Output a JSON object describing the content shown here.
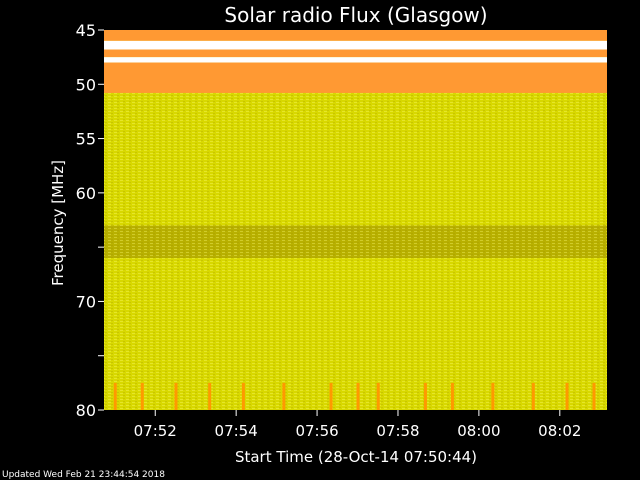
{
  "chart_data": {
    "type": "heatmap",
    "title": "Solar radio Flux (Glasgow)",
    "ylabel": "Frequency [MHz]",
    "xlabel": "Start Time (28-Oct-14 07:50:44)",
    "ylim": [
      45,
      80
    ],
    "y_inverted": true,
    "y_ticks": [
      45,
      50,
      55,
      60,
      65,
      70,
      75,
      80
    ],
    "y_tick_labels": [
      "45",
      "50",
      "55",
      "60",
      "",
      "70",
      "",
      "80"
    ],
    "x_start": "07:50:44",
    "x_end": "08:03:10",
    "x_ticks": [
      "07:52",
      "07:54",
      "07:56",
      "07:58",
      "08:00",
      "08:02"
    ],
    "colors": {
      "background": "#d8d800",
      "high_flux": "#ff9933",
      "saturated": "#ffffff",
      "low_band": "#b8b000",
      "bright": "#ffff66",
      "burst": "#ff9900"
    },
    "bands": [
      {
        "from": 45,
        "to": 46.0,
        "level": "high_flux"
      },
      {
        "from": 46.0,
        "to": 46.8,
        "level": "saturated"
      },
      {
        "from": 46.8,
        "to": 47.5,
        "level": "high_flux"
      },
      {
        "from": 47.5,
        "to": 48.0,
        "level": "saturated"
      },
      {
        "from": 48.0,
        "to": 50.8,
        "level": "high_flux"
      },
      {
        "from": 50.8,
        "to": 63.0,
        "level": "background"
      },
      {
        "from": 63.0,
        "to": 66.0,
        "level": "low_band"
      },
      {
        "from": 66.0,
        "to": 80,
        "level": "background"
      }
    ],
    "bursts": [
      {
        "time": "07:51:00",
        "from": 77.5,
        "to": 80
      },
      {
        "time": "07:51:40",
        "from": 77.5,
        "to": 80
      },
      {
        "time": "07:52:30",
        "from": 77.5,
        "to": 80
      },
      {
        "time": "07:53:20",
        "from": 77.5,
        "to": 80
      },
      {
        "time": "07:54:10",
        "from": 77.5,
        "to": 80
      },
      {
        "time": "07:55:10",
        "from": 77.5,
        "to": 80
      },
      {
        "time": "07:56:20",
        "from": 77.5,
        "to": 80
      },
      {
        "time": "07:57:00",
        "from": 77.5,
        "to": 80
      },
      {
        "time": "07:57:30",
        "from": 77.5,
        "to": 80
      },
      {
        "time": "07:58:40",
        "from": 77.5,
        "to": 80
      },
      {
        "time": "07:59:20",
        "from": 77.5,
        "to": 80
      },
      {
        "time": "08:00:20",
        "from": 77.5,
        "to": 80
      },
      {
        "time": "08:01:20",
        "from": 77.5,
        "to": 80
      },
      {
        "time": "08:02:10",
        "from": 77.5,
        "to": 80
      },
      {
        "time": "08:02:50",
        "from": 77.5,
        "to": 80
      }
    ]
  },
  "footer": "Updated Wed Feb 21 23:44:54 2018"
}
